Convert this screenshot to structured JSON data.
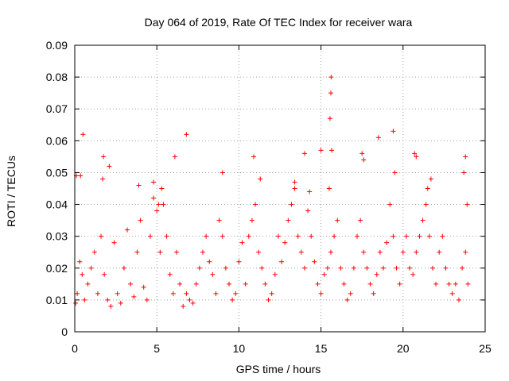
{
  "chart_data": {
    "type": "scatter",
    "title": "Day 064 of 2019, Rate Of TEC Index for receiver wara",
    "xlabel": "GPS time / hours",
    "ylabel": "ROTI / TECUs",
    "xlim": [
      0,
      25
    ],
    "ylim": [
      0,
      0.09
    ],
    "xticks": [
      0,
      5,
      10,
      15,
      20,
      25
    ],
    "xtick_labels": [
      "0",
      "5",
      "10",
      "15",
      "20",
      "25"
    ],
    "yticks": [
      0,
      0.01,
      0.02,
      0.03,
      0.04,
      0.05,
      0.06,
      0.07,
      0.08,
      0.09
    ],
    "ytick_labels": [
      "0",
      "0.01",
      "0.02",
      "0.03",
      "0.04",
      "0.05",
      "0.06",
      "0.07",
      "0.08",
      "0.09"
    ],
    "grid": true,
    "marker": "+",
    "color": "#ff0000",
    "series": [
      {
        "name": "ROTI",
        "x": [
          0.05,
          0.15,
          0.3,
          0.45,
          0.6,
          0.8,
          1.0,
          1.2,
          1.4,
          1.6,
          1.8,
          2.0,
          2.2,
          2.4,
          2.6,
          2.8,
          3.0,
          3.2,
          3.4,
          3.6,
          3.8,
          4.0,
          4.2,
          4.4,
          4.6,
          4.8,
          5.0,
          5.2,
          5.4,
          5.6,
          5.8,
          6.0,
          6.2,
          6.4,
          6.6,
          6.8,
          7.0,
          7.2,
          7.4,
          7.6,
          7.8,
          8.0,
          8.2,
          8.4,
          8.6,
          8.8,
          9.0,
          9.2,
          9.4,
          9.6,
          9.8,
          10.0,
          10.2,
          10.4,
          10.6,
          10.8,
          11.0,
          11.2,
          11.4,
          11.6,
          11.8,
          12.0,
          12.2,
          12.4,
          12.6,
          12.8,
          13.0,
          13.2,
          13.4,
          13.6,
          13.8,
          14.0,
          14.2,
          14.4,
          14.6,
          14.8,
          15.0,
          15.2,
          15.4,
          15.6,
          15.8,
          16.0,
          16.2,
          16.4,
          16.6,
          16.8,
          17.0,
          17.2,
          17.4,
          17.6,
          17.8,
          18.0,
          18.2,
          18.4,
          18.6,
          18.8,
          19.0,
          19.2,
          19.4,
          19.6,
          19.8,
          20.0,
          20.2,
          20.4,
          20.6,
          20.8,
          21.0,
          21.2,
          21.4,
          21.6,
          21.8,
          22.0,
          22.2,
          22.4,
          22.6,
          22.8,
          23.0,
          23.2,
          23.4,
          23.6,
          23.8,
          23.95,
          0.1,
          0.35,
          0.5,
          1.7,
          1.75,
          2.1,
          3.9,
          4.8,
          5.1,
          5.3,
          6.1,
          6.8,
          9.0,
          10.9,
          11.3,
          13.4,
          14.0,
          14.3,
          15.0,
          15.5,
          15.55,
          15.6,
          15.62,
          15.65,
          17.5,
          17.6,
          18.5,
          19.4,
          19.5,
          20.7,
          20.8,
          21.5,
          21.7,
          23.7,
          23.8,
          23.9
        ],
        "y": [
          0.009,
          0.012,
          0.022,
          0.018,
          0.01,
          0.015,
          0.02,
          0.025,
          0.012,
          0.03,
          0.018,
          0.01,
          0.008,
          0.028,
          0.012,
          0.009,
          0.02,
          0.032,
          0.015,
          0.011,
          0.025,
          0.035,
          0.014,
          0.01,
          0.03,
          0.042,
          0.038,
          0.025,
          0.04,
          0.03,
          0.018,
          0.012,
          0.025,
          0.015,
          0.008,
          0.012,
          0.01,
          0.009,
          0.015,
          0.02,
          0.025,
          0.03,
          0.022,
          0.018,
          0.012,
          0.035,
          0.03,
          0.02,
          0.015,
          0.01,
          0.012,
          0.022,
          0.028,
          0.015,
          0.03,
          0.035,
          0.04,
          0.025,
          0.02,
          0.015,
          0.01,
          0.012,
          0.018,
          0.03,
          0.022,
          0.028,
          0.035,
          0.04,
          0.045,
          0.03,
          0.025,
          0.02,
          0.038,
          0.03,
          0.022,
          0.015,
          0.012,
          0.018,
          0.02,
          0.025,
          0.03,
          0.035,
          0.02,
          0.015,
          0.01,
          0.012,
          0.02,
          0.03,
          0.035,
          0.025,
          0.02,
          0.015,
          0.012,
          0.018,
          0.025,
          0.02,
          0.028,
          0.04,
          0.03,
          0.02,
          0.015,
          0.025,
          0.03,
          0.02,
          0.018,
          0.025,
          0.03,
          0.035,
          0.04,
          0.03,
          0.02,
          0.015,
          0.025,
          0.03,
          0.02,
          0.015,
          0.012,
          0.015,
          0.01,
          0.02,
          0.025,
          0.015,
          0.049,
          0.049,
          0.062,
          0.048,
          0.055,
          0.052,
          0.046,
          0.047,
          0.04,
          0.045,
          0.055,
          0.062,
          0.05,
          0.055,
          0.048,
          0.047,
          0.056,
          0.044,
          0.057,
          0.045,
          0.067,
          0.075,
          0.08,
          0.057,
          0.056,
          0.054,
          0.061,
          0.063,
          0.05,
          0.056,
          0.055,
          0.045,
          0.048,
          0.05,
          0.055,
          0.04
        ]
      }
    ]
  }
}
